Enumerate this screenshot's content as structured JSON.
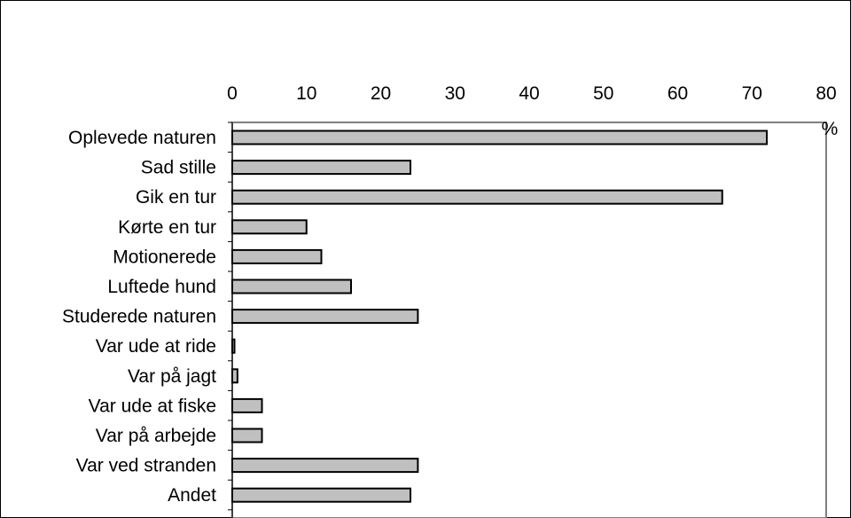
{
  "chart_data": {
    "type": "bar",
    "orientation": "horizontal",
    "title": "",
    "xlabel": "",
    "ylabel": "",
    "unit_label": "%",
    "xlim": [
      0,
      80
    ],
    "x_ticks": [
      0,
      10,
      20,
      30,
      40,
      50,
      60,
      70,
      80
    ],
    "x_axis_position": "top",
    "grid": false,
    "legend": "none",
    "bar_color": "#c0c0c0",
    "bar_edge_color": "#000000",
    "categories": [
      "Oplevede naturen",
      "Sad stille",
      "Gik en tur",
      "Kørte en tur",
      "Motionerede",
      "Luftede hund",
      "Studerede naturen",
      "Var ude at ride",
      "Var på jagt",
      "Var ude at fiske",
      "Var på arbejde",
      "Var ved stranden",
      "Andet"
    ],
    "values": [
      72,
      24,
      66,
      10,
      12,
      16,
      25,
      0.3,
      0.7,
      4,
      4,
      25,
      24
    ]
  }
}
